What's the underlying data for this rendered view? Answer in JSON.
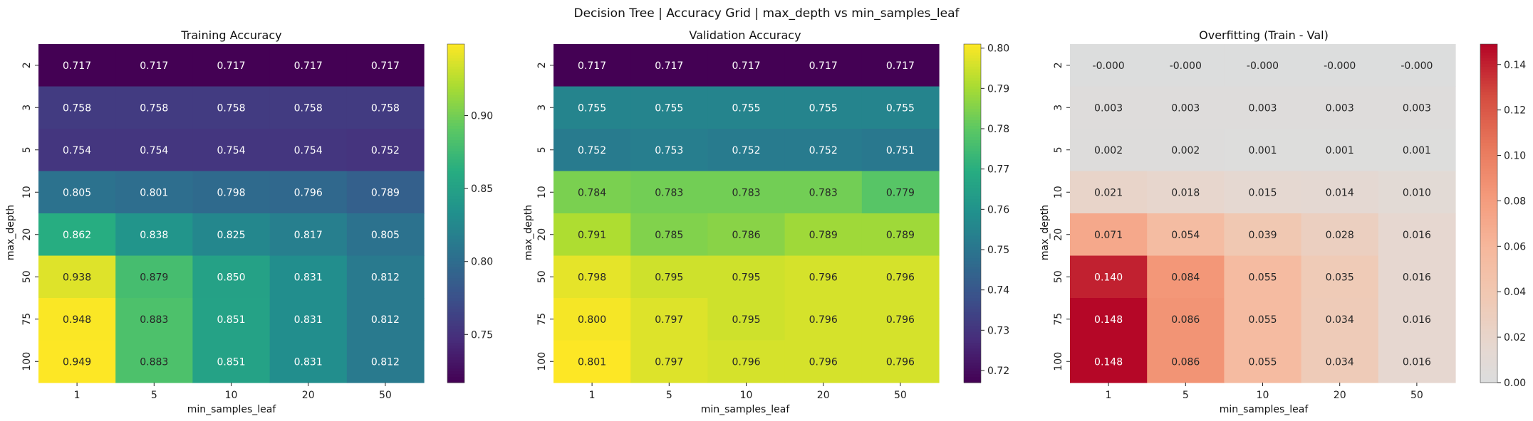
{
  "suptitle": "Decision Tree | Accuracy Grid | max_depth vs min_samples_leaf",
  "chart_data": [
    {
      "type": "heatmap",
      "title": "Training Accuracy",
      "xlabel": "min_samples_leaf",
      "ylabel": "max_depth",
      "x_categories": [
        "1",
        "5",
        "10",
        "20",
        "50"
      ],
      "y_categories": [
        "2",
        "3",
        "5",
        "10",
        "20",
        "50",
        "75",
        "100"
      ],
      "values": [
        [
          0.717,
          0.717,
          0.717,
          0.717,
          0.717
        ],
        [
          0.758,
          0.758,
          0.758,
          0.758,
          0.758
        ],
        [
          0.754,
          0.754,
          0.754,
          0.754,
          0.752
        ],
        [
          0.805,
          0.801,
          0.798,
          0.796,
          0.789
        ],
        [
          0.862,
          0.838,
          0.825,
          0.817,
          0.805
        ],
        [
          0.938,
          0.879,
          0.85,
          0.831,
          0.812
        ],
        [
          0.948,
          0.883,
          0.851,
          0.831,
          0.812
        ],
        [
          0.949,
          0.883,
          0.851,
          0.831,
          0.812
        ]
      ],
      "labels": [
        [
          "0.717",
          "0.717",
          "0.717",
          "0.717",
          "0.717"
        ],
        [
          "0.758",
          "0.758",
          "0.758",
          "0.758",
          "0.758"
        ],
        [
          "0.754",
          "0.754",
          "0.754",
          "0.754",
          "0.752"
        ],
        [
          "0.805",
          "0.801",
          "0.798",
          "0.796",
          "0.789"
        ],
        [
          "0.862",
          "0.838",
          "0.825",
          "0.817",
          "0.805"
        ],
        [
          "0.938",
          "0.879",
          "0.850",
          "0.831",
          "0.812"
        ],
        [
          "0.948",
          "0.883",
          "0.851",
          "0.831",
          "0.812"
        ],
        [
          "0.949",
          "0.883",
          "0.851",
          "0.831",
          "0.812"
        ]
      ],
      "colormap": "viridis",
      "vmin": 0.717,
      "vmax": 0.949,
      "colorbar_ticks": [
        0.75,
        0.8,
        0.85,
        0.9
      ],
      "colorbar_tick_labels": [
        "0.75",
        "0.80",
        "0.85",
        "0.90"
      ]
    },
    {
      "type": "heatmap",
      "title": "Validation Accuracy",
      "xlabel": "min_samples_leaf",
      "ylabel": "max_depth",
      "x_categories": [
        "1",
        "5",
        "10",
        "20",
        "50"
      ],
      "y_categories": [
        "2",
        "3",
        "5",
        "10",
        "20",
        "50",
        "75",
        "100"
      ],
      "values": [
        [
          0.717,
          0.717,
          0.717,
          0.717,
          0.717
        ],
        [
          0.755,
          0.755,
          0.755,
          0.755,
          0.755
        ],
        [
          0.752,
          0.753,
          0.752,
          0.752,
          0.751
        ],
        [
          0.784,
          0.783,
          0.783,
          0.783,
          0.779
        ],
        [
          0.791,
          0.785,
          0.786,
          0.789,
          0.789
        ],
        [
          0.798,
          0.795,
          0.795,
          0.796,
          0.796
        ],
        [
          0.8,
          0.797,
          0.795,
          0.796,
          0.796
        ],
        [
          0.801,
          0.797,
          0.796,
          0.796,
          0.796
        ]
      ],
      "labels": [
        [
          "0.717",
          "0.717",
          "0.717",
          "0.717",
          "0.717"
        ],
        [
          "0.755",
          "0.755",
          "0.755",
          "0.755",
          "0.755"
        ],
        [
          "0.752",
          "0.753",
          "0.752",
          "0.752",
          "0.751"
        ],
        [
          "0.784",
          "0.783",
          "0.783",
          "0.783",
          "0.779"
        ],
        [
          "0.791",
          "0.785",
          "0.786",
          "0.789",
          "0.789"
        ],
        [
          "0.798",
          "0.795",
          "0.795",
          "0.796",
          "0.796"
        ],
        [
          "0.800",
          "0.797",
          "0.795",
          "0.796",
          "0.796"
        ],
        [
          "0.801",
          "0.797",
          "0.796",
          "0.796",
          "0.796"
        ]
      ],
      "colormap": "viridis",
      "vmin": 0.717,
      "vmax": 0.801,
      "colorbar_ticks": [
        0.72,
        0.73,
        0.74,
        0.75,
        0.76,
        0.77,
        0.78,
        0.79,
        0.8
      ],
      "colorbar_tick_labels": [
        "0.72",
        "0.73",
        "0.74",
        "0.75",
        "0.76",
        "0.77",
        "0.78",
        "0.79",
        "0.80"
      ]
    },
    {
      "type": "heatmap",
      "title": "Overfitting (Train - Val)",
      "xlabel": "min_samples_leaf",
      "ylabel": "max_depth",
      "x_categories": [
        "1",
        "5",
        "10",
        "20",
        "50"
      ],
      "y_categories": [
        "2",
        "3",
        "5",
        "10",
        "20",
        "50",
        "75",
        "100"
      ],
      "values": [
        [
          0.0,
          0.0,
          0.0,
          0.0,
          0.0
        ],
        [
          0.003,
          0.003,
          0.003,
          0.003,
          0.003
        ],
        [
          0.002,
          0.002,
          0.001,
          0.001,
          0.001
        ],
        [
          0.021,
          0.018,
          0.015,
          0.014,
          0.01
        ],
        [
          0.071,
          0.054,
          0.039,
          0.028,
          0.016
        ],
        [
          0.14,
          0.084,
          0.055,
          0.035,
          0.016
        ],
        [
          0.148,
          0.086,
          0.055,
          0.034,
          0.016
        ],
        [
          0.148,
          0.086,
          0.055,
          0.034,
          0.016
        ]
      ],
      "labels": [
        [
          "-0.000",
          "-0.000",
          "-0.000",
          "-0.000",
          "-0.000"
        ],
        [
          "0.003",
          "0.003",
          "0.003",
          "0.003",
          "0.003"
        ],
        [
          "0.002",
          "0.002",
          "0.001",
          "0.001",
          "0.001"
        ],
        [
          "0.021",
          "0.018",
          "0.015",
          "0.014",
          "0.010"
        ],
        [
          "0.071",
          "0.054",
          "0.039",
          "0.028",
          "0.016"
        ],
        [
          "0.140",
          "0.084",
          "0.055",
          "0.035",
          "0.016"
        ],
        [
          "0.148",
          "0.086",
          "0.055",
          "0.034",
          "0.016"
        ],
        [
          "0.148",
          "0.086",
          "0.055",
          "0.034",
          "0.016"
        ]
      ],
      "colormap": "coolwarm-centered-0",
      "vmin": 0.0,
      "vmax": 0.149,
      "colorbar_ticks": [
        0.0,
        0.02,
        0.04,
        0.06,
        0.08,
        0.1,
        0.12,
        0.14
      ],
      "colorbar_tick_labels": [
        "0.00",
        "0.02",
        "0.04",
        "0.06",
        "0.08",
        "0.10",
        "0.12",
        "0.14"
      ]
    }
  ]
}
